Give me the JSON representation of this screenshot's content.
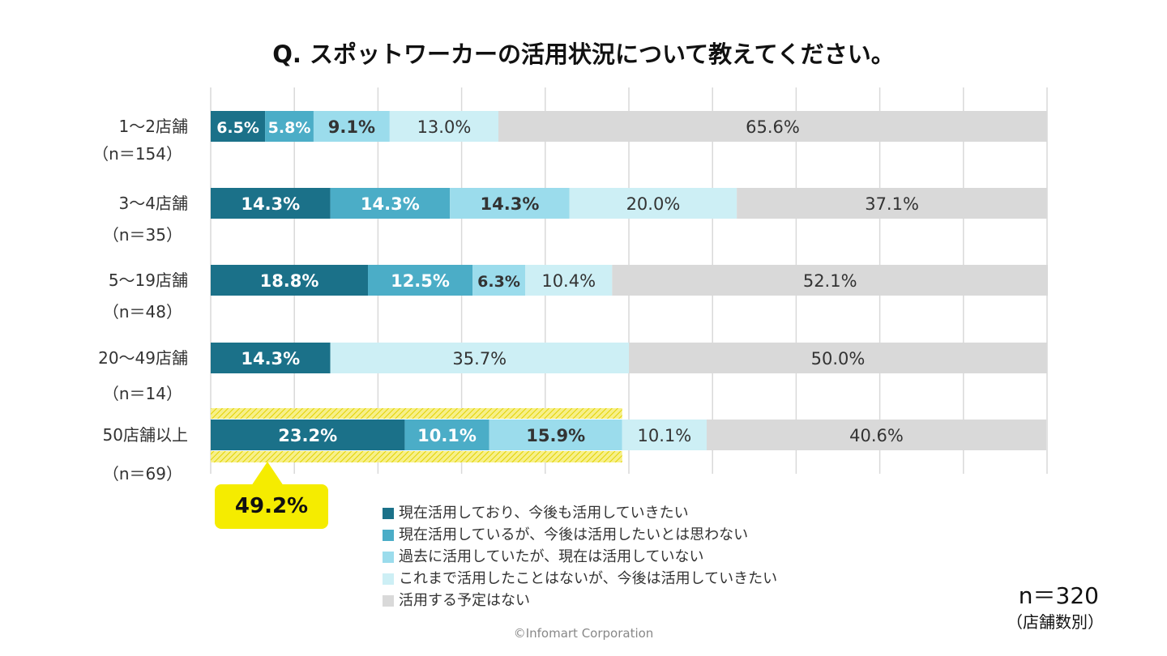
{
  "chart_data": {
    "type": "bar",
    "stacked": true,
    "orientation": "horizontal",
    "title": "Q. スポットワーカーの活用状況について教えてください。",
    "xlim": [
      0,
      100
    ],
    "grid": true,
    "legend_placement": "bottom",
    "categories": [
      {
        "label": "1〜2店舗",
        "n": "（n＝154）"
      },
      {
        "label": "3〜4店舗",
        "n": "（n＝35）"
      },
      {
        "label": "5〜19店舗",
        "n": "（n＝48）"
      },
      {
        "label": "20〜49店舗",
        "n": "（n＝14）"
      },
      {
        "label": "50店舗以上",
        "n": "（n＝69）"
      }
    ],
    "series": [
      {
        "name": "現在活用しており、今後も活用していきたい",
        "color": "#1b7189",
        "values": [
          6.5,
          14.3,
          18.8,
          14.3,
          23.2
        ]
      },
      {
        "name": "現在活用しているが、今後は活用したいとは思わない",
        "color": "#4badc7",
        "values": [
          5.8,
          14.3,
          12.5,
          0,
          10.1
        ]
      },
      {
        "name": "過去に活用していたが、現在は活用していない",
        "color": "#9bdcec",
        "values": [
          9.1,
          14.3,
          6.3,
          0,
          15.9
        ]
      },
      {
        "name": "これまで活用したことはないが、今後は活用していきたい",
        "color": "#cdeff5",
        "values": [
          13.0,
          20.0,
          10.4,
          35.7,
          10.1
        ]
      },
      {
        "name": "活用する予定はない",
        "color": "#d9d9d9",
        "values": [
          65.6,
          37.1,
          52.1,
          50.0,
          40.6
        ]
      }
    ],
    "annotation": {
      "text": "49.2%",
      "color": "#f5ec00",
      "category": "50店舗以上",
      "value": 49.2
    },
    "sample": "n＝320",
    "sample_note": "（店舗数別）"
  },
  "footer": {
    "copyright": "©Infomart Corporation"
  }
}
